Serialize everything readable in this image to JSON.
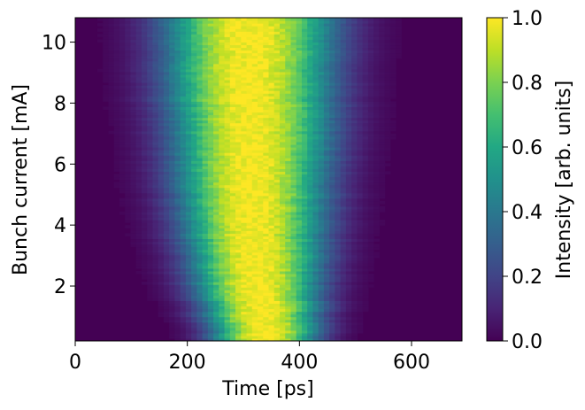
{
  "chart_data": {
    "type": "heatmap",
    "title": "",
    "xlabel": "Time [ps]",
    "ylabel": "Bunch current [mA]",
    "xlim": [
      0,
      690
    ],
    "ylim": [
      0.2,
      10.8
    ],
    "xticks": [
      0,
      200,
      400,
      600
    ],
    "xtick_labels": [
      "0",
      "200",
      "400",
      "600"
    ],
    "yticks": [
      2,
      4,
      6,
      8,
      10
    ],
    "ytick_labels": [
      "2",
      "4",
      "6",
      "8",
      "10"
    ],
    "colormap": "viridis",
    "colorbar": {
      "label": "Intensity [arb. units]",
      "range": [
        0,
        1
      ],
      "ticks": [
        0,
        0.2,
        0.4,
        0.6,
        0.8,
        1.0
      ],
      "tick_labels": [
        "0.0",
        "0.2",
        "0.4",
        "0.6",
        "0.8",
        "1.0"
      ]
    },
    "profile_center_ps": [
      {
        "current": 0.2,
        "center": 340
      },
      {
        "current": 2,
        "center": 325
      },
      {
        "current": 4,
        "center": 318
      },
      {
        "current": 6,
        "center": 315
      },
      {
        "current": 8,
        "center": 312
      },
      {
        "current": 10.8,
        "center": 310
      }
    ],
    "profile_halfwidth_ps": [
      {
        "current": 0.2,
        "value": 95
      },
      {
        "current": 2,
        "value": 115
      },
      {
        "current": 4,
        "value": 130
      },
      {
        "current": 6,
        "value": 140
      },
      {
        "current": 8,
        "value": 148
      },
      {
        "current": 10.8,
        "value": 155
      }
    ]
  }
}
